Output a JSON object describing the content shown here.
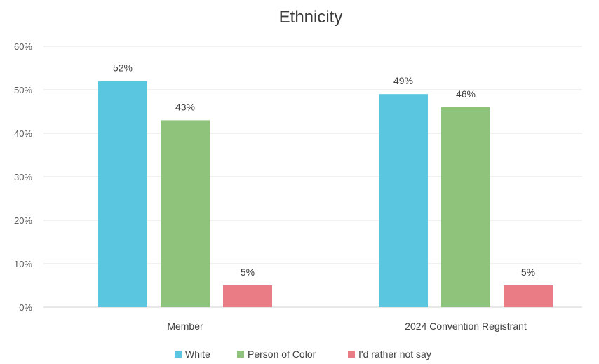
{
  "chart_data": {
    "type": "bar",
    "title": "Ethnicity",
    "categories": [
      "Member",
      "2024 Convention Registrant"
    ],
    "series": [
      {
        "name": "White",
        "values": [
          52,
          49
        ],
        "labels": [
          "52%",
          "49%"
        ],
        "color": "#5bc6e0"
      },
      {
        "name": "Person of Color",
        "values": [
          43,
          46
        ],
        "labels": [
          "43%",
          "46%"
        ],
        "color": "#8fc27a"
      },
      {
        "name": "I'd rather not say",
        "values": [
          5,
          5
        ],
        "labels": [
          "5%",
          "5%"
        ],
        "color": "#ea7c86"
      }
    ],
    "ylim": [
      0,
      60
    ],
    "yticks": [
      "0%",
      "10%",
      "20%",
      "30%",
      "40%",
      "50%",
      "60%"
    ],
    "ytick_values": [
      0,
      10,
      20,
      30,
      40,
      50,
      60
    ],
    "grid": true,
    "legend_position": "bottom"
  }
}
